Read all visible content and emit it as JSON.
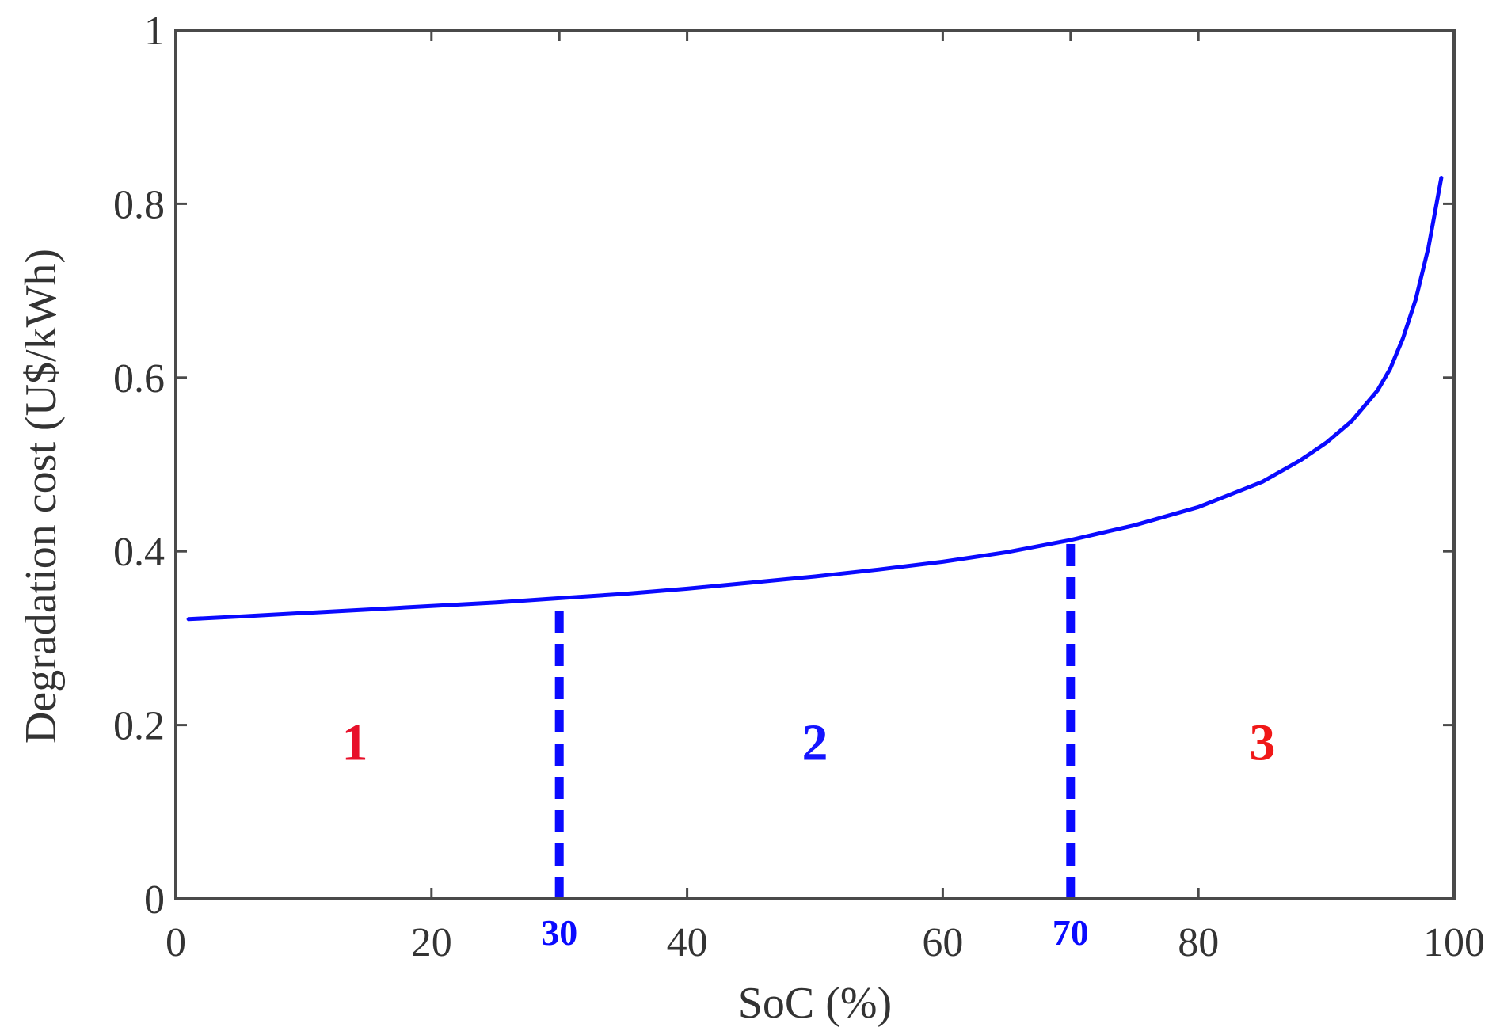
{
  "chart_data": {
    "type": "line",
    "xlabel": "SoC (%)",
    "ylabel": "Degradation cost (U$/kWh)",
    "xlim": [
      0,
      100
    ],
    "ylim": [
      0,
      1
    ],
    "xticks": [
      0,
      20,
      40,
      60,
      80,
      100
    ],
    "xtick_labels": [
      "0",
      "20",
      "40",
      "60",
      "80",
      "100"
    ],
    "yticks": [
      0,
      0.2,
      0.4,
      0.6,
      0.8,
      1
    ],
    "ytick_labels": [
      "0",
      "0.2",
      "0.4",
      "0.6",
      "0.8",
      "1"
    ],
    "grid": false,
    "series": [
      {
        "color": "#0a0aff",
        "x": [
          1,
          5,
          10,
          15,
          20,
          25,
          30,
          35,
          40,
          45,
          50,
          55,
          60,
          65,
          70,
          75,
          80,
          85,
          88,
          90,
          92,
          94,
          95,
          96,
          97,
          98,
          99
        ],
        "y": [
          0.322,
          0.325,
          0.329,
          0.333,
          0.337,
          0.341,
          0.346,
          0.351,
          0.357,
          0.364,
          0.371,
          0.379,
          0.388,
          0.399,
          0.413,
          0.43,
          0.451,
          0.48,
          0.505,
          0.525,
          0.55,
          0.585,
          0.61,
          0.645,
          0.69,
          0.75,
          0.83
        ]
      }
    ],
    "vlines": [
      {
        "x": 30,
        "label": "30",
        "color": "#0a0aff",
        "style": "dashed"
      },
      {
        "x": 70,
        "label": "70",
        "color": "#0a0aff",
        "style": "dashed"
      }
    ],
    "regions": [
      {
        "label": "1",
        "x": 14,
        "y": 0.18,
        "color": "#e8102a"
      },
      {
        "label": "2",
        "x": 50,
        "y": 0.18,
        "color": "#1414ff"
      },
      {
        "label": "3",
        "x": 85,
        "y": 0.18,
        "color": "#f01818"
      }
    ]
  }
}
